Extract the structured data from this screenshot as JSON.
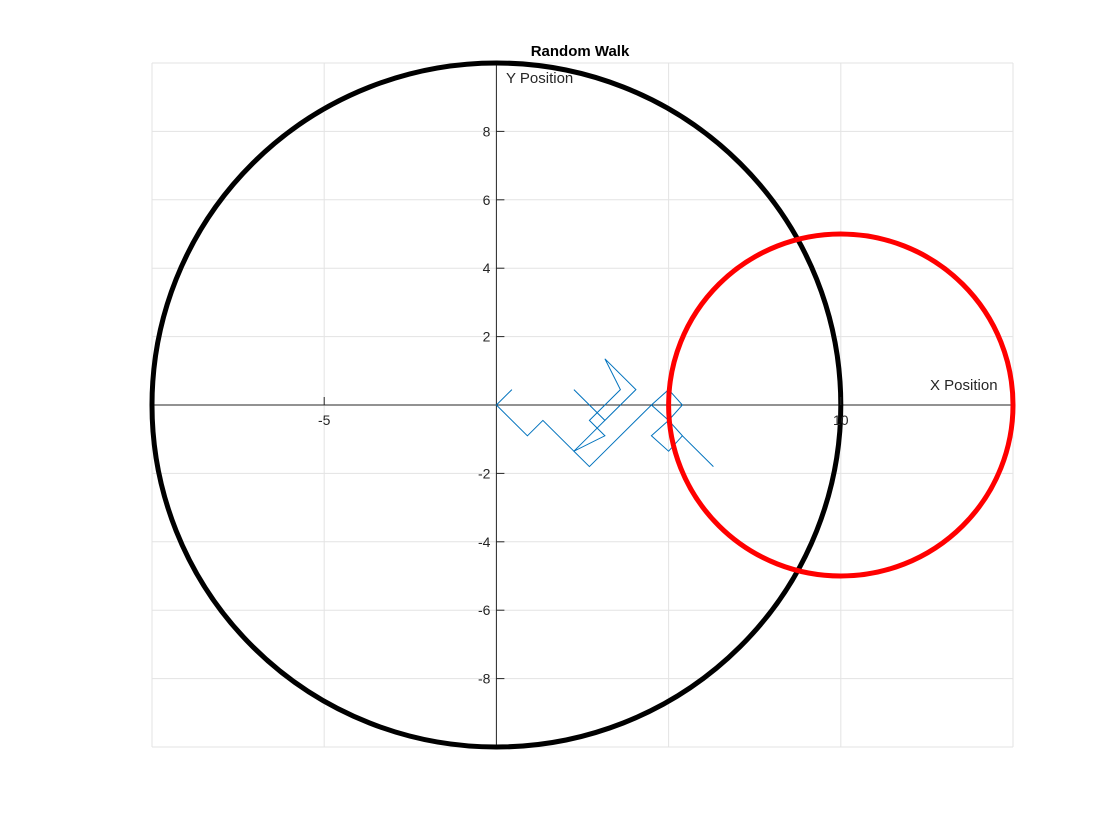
{
  "chart_data": {
    "type": "line",
    "title": "Random Walk",
    "xlabel": "X Position",
    "ylabel": "Y Position",
    "xlim": [
      -10,
      15
    ],
    "ylim": [
      -10,
      10
    ],
    "grid": true,
    "axis_location": "origin",
    "x_ticks": [
      -5,
      10
    ],
    "y_ticks": [
      -8,
      -6,
      -4,
      -2,
      2,
      4,
      6,
      8
    ],
    "series": [
      {
        "kind": "path",
        "color": "#0072BD",
        "x": [
          0,
          0.45,
          0,
          0.9,
          1.35,
          2.25,
          2.7,
          3.15,
          2.25,
          3.15,
          3.6,
          4.05,
          3.15,
          3.6,
          3.15,
          2.7,
          3.15,
          2.25,
          2.7,
          3.15,
          4.05,
          4.5,
          5.0,
          5.4,
          5.0,
          4.5,
          5.0,
          4.5,
          5.0,
          5.4,
          5.0,
          5.4,
          6.3
        ],
        "y": [
          0,
          0.45,
          0,
          -0.9,
          -0.45,
          -1.35,
          -0.9,
          -0.45,
          0.45,
          -0.45,
          0.0,
          0.45,
          1.35,
          0.45,
          0.0,
          -0.45,
          -0.9,
          -1.35,
          -1.8,
          -1.35,
          -0.45,
          0.0,
          -0.45,
          -0.9,
          -1.35,
          -0.9,
          -0.45,
          0.0,
          0.45,
          0.0,
          -0.45,
          -0.9,
          -1.8
        ]
      },
      {
        "kind": "circle",
        "color": "#000000",
        "center": [
          0,
          0
        ],
        "radius": 10
      },
      {
        "kind": "circle",
        "color": "#FF0000",
        "center": [
          10,
          0
        ],
        "radius": 5
      }
    ]
  }
}
